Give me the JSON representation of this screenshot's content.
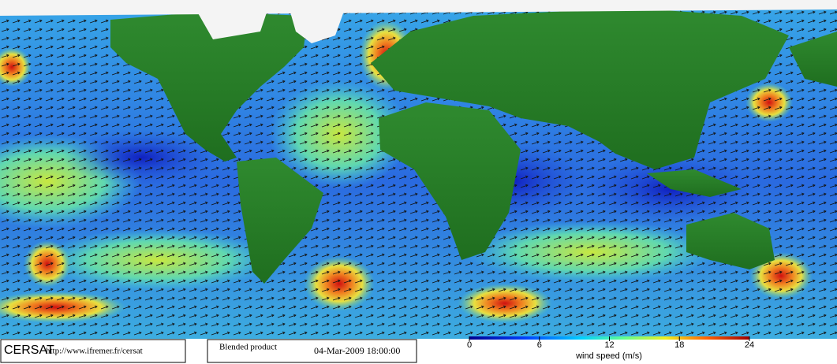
{
  "footer": {
    "logo": "CERSAT",
    "url": "http://www.ifremer.fr/cersat",
    "product": "Blended product",
    "date": "04-Mar-2009 18:00:00"
  },
  "colorbar": {
    "label": "wind speed (m/s)",
    "lim": [
      0,
      24
    ],
    "ticks": [
      0,
      6,
      12,
      18,
      24
    ]
  }
}
